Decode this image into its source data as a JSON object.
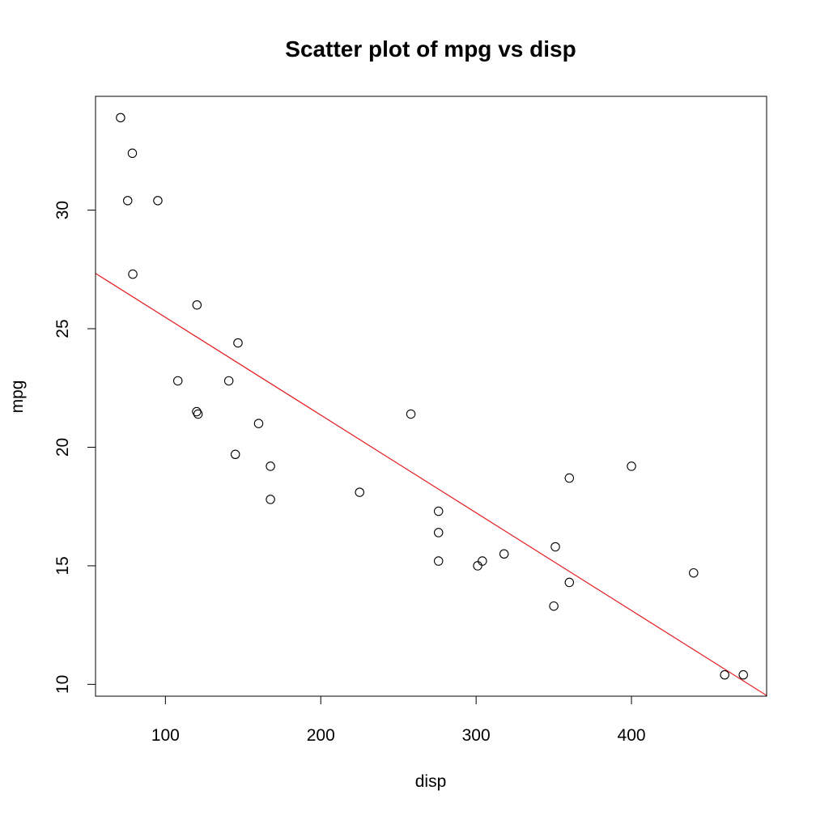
{
  "chart_data": {
    "type": "scatter",
    "title": "Scatter plot of mpg vs disp",
    "xlabel": "disp",
    "ylabel": "mpg",
    "xlim": [
      55,
      487
    ],
    "ylim": [
      9.5,
      34.8
    ],
    "x_ticks": [
      100,
      200,
      300,
      400
    ],
    "y_ticks": [
      10,
      15,
      20,
      25,
      30
    ],
    "x_tick_labels": [
      "100",
      "200",
      "300",
      "400"
    ],
    "y_tick_labels": [
      "10",
      "15",
      "20",
      "25",
      "30"
    ],
    "grid": false,
    "legend": "none",
    "point_color": "#000000",
    "line_color": "#e31a1c",
    "points": [
      {
        "x": 71.1,
        "y": 33.9
      },
      {
        "x": 78.7,
        "y": 32.4
      },
      {
        "x": 75.7,
        "y": 30.4
      },
      {
        "x": 95.1,
        "y": 30.4
      },
      {
        "x": 79.0,
        "y": 27.3
      },
      {
        "x": 120.3,
        "y": 26.0
      },
      {
        "x": 146.7,
        "y": 24.4
      },
      {
        "x": 108.0,
        "y": 22.8
      },
      {
        "x": 140.8,
        "y": 22.8
      },
      {
        "x": 120.1,
        "y": 21.5
      },
      {
        "x": 121.0,
        "y": 21.4
      },
      {
        "x": 258.0,
        "y": 21.4
      },
      {
        "x": 160.0,
        "y": 21.0
      },
      {
        "x": 145.0,
        "y": 19.7
      },
      {
        "x": 167.6,
        "y": 19.2
      },
      {
        "x": 400.0,
        "y": 19.2
      },
      {
        "x": 360.0,
        "y": 18.7
      },
      {
        "x": 225.0,
        "y": 18.1
      },
      {
        "x": 167.6,
        "y": 17.8
      },
      {
        "x": 275.8,
        "y": 17.3
      },
      {
        "x": 275.8,
        "y": 16.4
      },
      {
        "x": 351.0,
        "y": 15.8
      },
      {
        "x": 318.0,
        "y": 15.5
      },
      {
        "x": 275.8,
        "y": 15.2
      },
      {
        "x": 304.0,
        "y": 15.2
      },
      {
        "x": 301.0,
        "y": 15.0
      },
      {
        "x": 440.0,
        "y": 14.7
      },
      {
        "x": 360.0,
        "y": 14.3
      },
      {
        "x": 350.0,
        "y": 13.3
      },
      {
        "x": 472.0,
        "y": 10.4
      },
      {
        "x": 460.0,
        "y": 10.4
      }
    ],
    "regression_line": {
      "intercept": 29.599855,
      "slope": -0.041215
    }
  }
}
